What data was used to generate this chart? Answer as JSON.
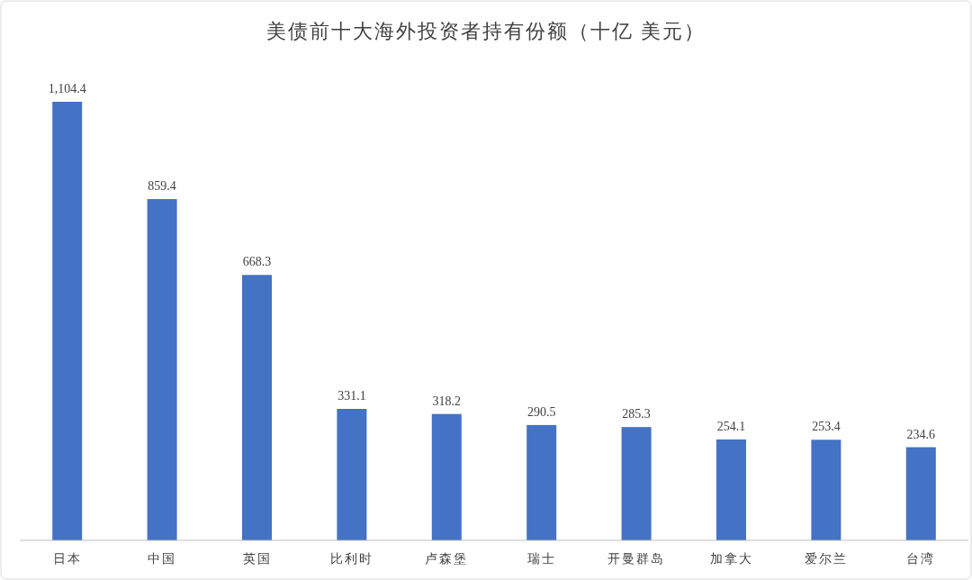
{
  "chart_data": {
    "type": "bar",
    "title": "美债前十大海外投资者持有份额（十亿 美元）",
    "categories": [
      "日本",
      "中国",
      "英国",
      "比利时",
      "卢森堡",
      "瑞士",
      "开曼群岛",
      "加拿大",
      "爱尔兰",
      "台湾"
    ],
    "values": [
      1104.4,
      859.4,
      668.3,
      331.1,
      318.2,
      290.5,
      285.3,
      254.1,
      253.4,
      234.6
    ],
    "value_labels": [
      "1,104.4",
      "859.4",
      "668.3",
      "331.1",
      "318.2",
      "290.5",
      "285.3",
      "254.1",
      "253.4",
      "234.6"
    ],
    "color": "#4472c4"
  }
}
